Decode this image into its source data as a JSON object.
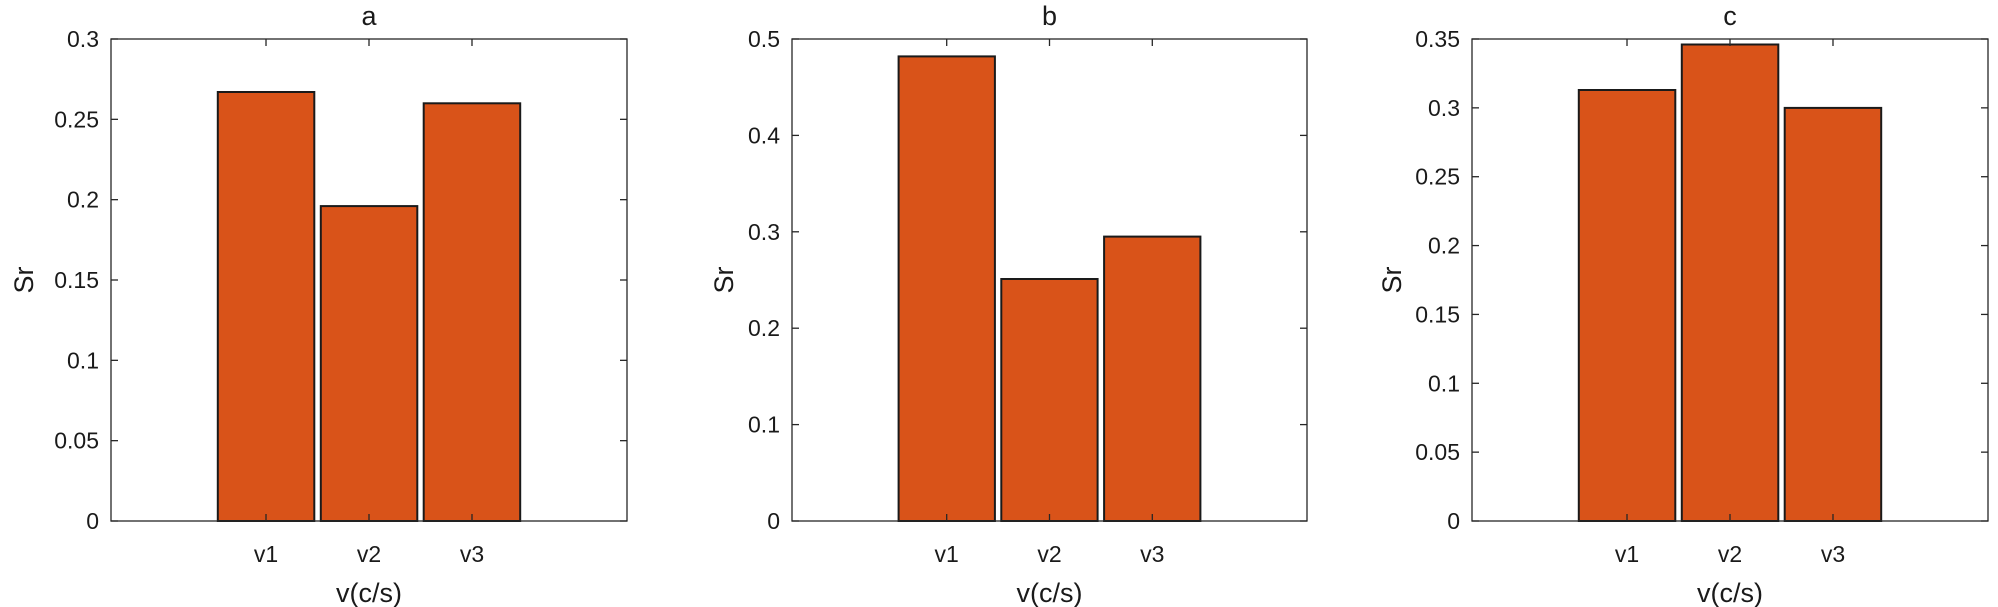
{
  "chart_data": [
    {
      "type": "bar",
      "title": "a",
      "xlabel": "v(c/s)",
      "ylabel": "Sr",
      "categories": [
        "v1",
        "v2",
        "v3"
      ],
      "values": [
        0.267,
        0.196,
        0.26
      ],
      "ylim": [
        0,
        0.3
      ],
      "yticks": [
        "0",
        "0.05",
        "0.1",
        "0.15",
        "0.2",
        "0.25",
        "0.3"
      ],
      "bar_color": "#D95319",
      "grid": false
    },
    {
      "type": "bar",
      "title": "b",
      "xlabel": "v(c/s)",
      "ylabel": "Sr",
      "categories": [
        "v1",
        "v2",
        "v3"
      ],
      "values": [
        0.482,
        0.251,
        0.295
      ],
      "ylim": [
        0,
        0.5
      ],
      "yticks": [
        "0",
        "0.1",
        "0.2",
        "0.3",
        "0.4",
        "0.5"
      ],
      "bar_color": "#D95319",
      "grid": false
    },
    {
      "type": "bar",
      "title": "c",
      "xlabel": "v(c/s)",
      "ylabel": "Sr",
      "categories": [
        "v1",
        "v2",
        "v3"
      ],
      "values": [
        0.313,
        0.346,
        0.3
      ],
      "ylim": [
        0,
        0.35
      ],
      "yticks": [
        "0",
        "0.05",
        "0.1",
        "0.15",
        "0.2",
        "0.25",
        "0.3",
        "0.35"
      ],
      "bar_color": "#D95319",
      "grid": false
    }
  ]
}
